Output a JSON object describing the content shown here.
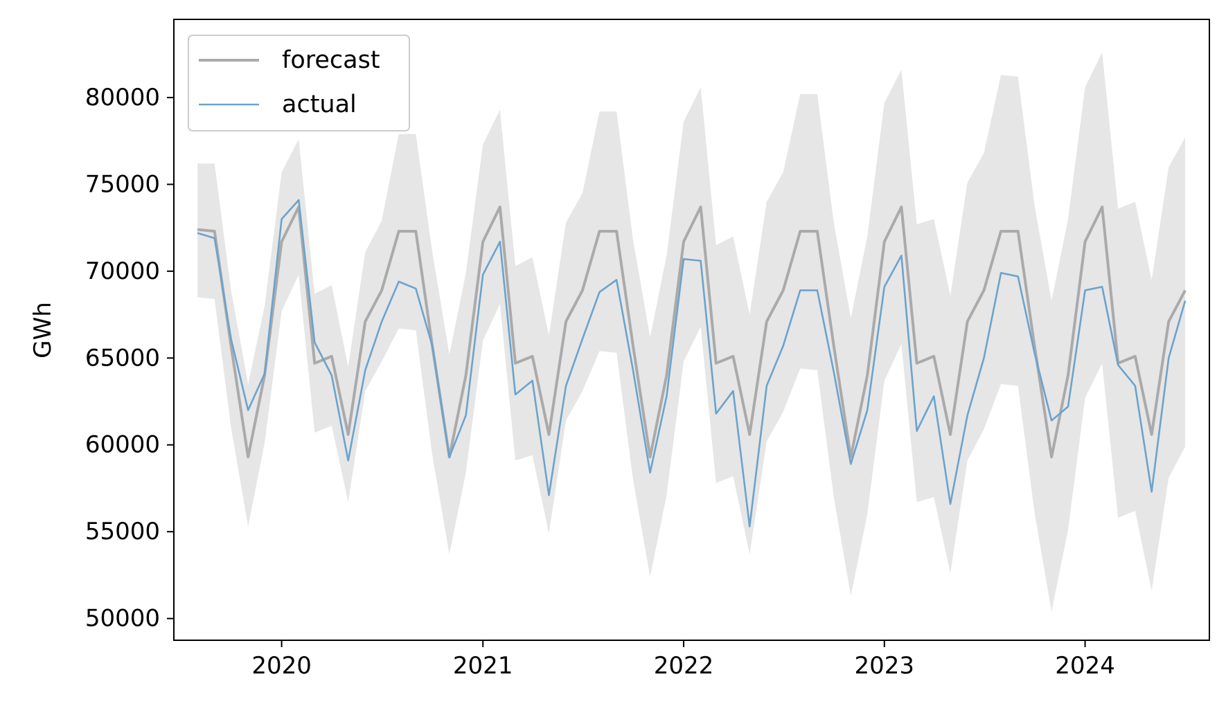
{
  "chart_data": {
    "type": "line",
    "title": "",
    "xlabel": "",
    "ylabel": "GWh",
    "xlim": [
      "2019-06-19",
      "2024-08-14"
    ],
    "ylim": [
      48750,
      84500
    ],
    "x_ticks": [
      "2020-01-01",
      "2021-01-01",
      "2022-01-01",
      "2023-01-01",
      "2024-01-01"
    ],
    "x_tick_labels": [
      "2020",
      "2021",
      "2022",
      "2023",
      "2024"
    ],
    "y_ticks": [
      50000,
      55000,
      60000,
      65000,
      70000,
      75000,
      80000
    ],
    "y_tick_labels": [
      "50000",
      "55000",
      "60000",
      "65000",
      "70000",
      "75000",
      "80000"
    ],
    "legend": {
      "position": "top-left",
      "entries": [
        "forecast",
        "actual"
      ]
    },
    "grid": false,
    "colors": {
      "forecast": "#aaaaaa",
      "actual": "#6ba3cc",
      "band": "#e6e6e6"
    },
    "x": [
      "2019-08-01",
      "2019-09-01",
      "2019-10-01",
      "2019-11-01",
      "2019-12-01",
      "2020-01-01",
      "2020-02-01",
      "2020-03-01",
      "2020-04-01",
      "2020-05-01",
      "2020-06-01",
      "2020-07-01",
      "2020-08-01",
      "2020-09-01",
      "2020-10-01",
      "2020-11-01",
      "2020-12-01",
      "2021-01-01",
      "2021-02-01",
      "2021-03-01",
      "2021-04-01",
      "2021-05-01",
      "2021-06-01",
      "2021-07-01",
      "2021-08-01",
      "2021-09-01",
      "2021-10-01",
      "2021-11-01",
      "2021-12-01",
      "2022-01-01",
      "2022-02-01",
      "2022-03-01",
      "2022-04-01",
      "2022-05-01",
      "2022-06-01",
      "2022-07-01",
      "2022-08-01",
      "2022-09-01",
      "2022-10-01",
      "2022-11-01",
      "2022-12-01",
      "2023-01-01",
      "2023-02-01",
      "2023-03-01",
      "2023-04-01",
      "2023-05-01",
      "2023-06-01",
      "2023-07-01",
      "2023-08-01",
      "2023-09-01",
      "2023-10-01",
      "2023-11-01",
      "2023-12-01",
      "2024-01-01",
      "2024-02-01",
      "2024-03-01",
      "2024-04-01",
      "2024-05-01",
      "2024-06-01",
      "2024-07-01"
    ],
    "series": [
      {
        "name": "forecast",
        "values": [
          72400,
          72300,
          65700,
          59300,
          64000,
          71700,
          73700,
          64700,
          65100,
          60600,
          67100,
          68900,
          72300,
          72300,
          65700,
          59300,
          64000,
          71700,
          73700,
          64700,
          65100,
          60600,
          67100,
          68900,
          72300,
          72300,
          65700,
          59300,
          64000,
          71700,
          73700,
          64700,
          65100,
          60600,
          67100,
          68900,
          72300,
          72300,
          65700,
          59300,
          64000,
          71700,
          73700,
          64700,
          65100,
          60600,
          67100,
          68900,
          72300,
          72300,
          65700,
          59300,
          64000,
          71700,
          73700,
          64700,
          65100,
          60600,
          67100,
          68900
        ]
      },
      {
        "name": "actual",
        "values": [
          72200,
          71900,
          66100,
          62000,
          64100,
          73000,
          74100,
          65900,
          64000,
          59100,
          64300,
          67100,
          69400,
          69000,
          65700,
          59300,
          61700,
          69800,
          71700,
          62900,
          63700,
          57100,
          63400,
          66100,
          68800,
          69500,
          64300,
          58400,
          62800,
          70700,
          70600,
          61800,
          63100,
          55300,
          63400,
          65700,
          68900,
          68900,
          64200,
          58900,
          62000,
          69100,
          70900,
          60800,
          62800,
          56600,
          61700,
          65000,
          69900,
          69700,
          65300,
          61400,
          62200,
          68900,
          69100,
          64600,
          63400,
          57300,
          65000,
          68300
        ]
      },
      {
        "name": "",
        "kind": "band",
        "upper": [
          76200,
          76200,
          68900,
          63500,
          68000,
          75700,
          77600,
          68700,
          69200,
          64500,
          71100,
          72900,
          77900,
          77900,
          71100,
          65200,
          69900,
          77300,
          79300,
          70300,
          70800,
          66300,
          72800,
          74500,
          79200,
          79200,
          71800,
          66200,
          70900,
          78600,
          80600,
          71500,
          72000,
          67500,
          74000,
          75700,
          80200,
          80200,
          72800,
          67300,
          72000,
          79700,
          81600,
          72700,
          73000,
          68600,
          75100,
          76800,
          81300,
          81200,
          73800,
          68300,
          73000,
          80600,
          82600,
          73600,
          74000,
          69500,
          76000,
          77700
        ],
        "lower": [
          68500,
          68400,
          61000,
          55300,
          60100,
          67700,
          69800,
          60700,
          61100,
          56700,
          63100,
          64800,
          66700,
          66600,
          59400,
          53700,
          58400,
          66000,
          68100,
          59100,
          59400,
          54900,
          61400,
          63100,
          65400,
          65300,
          58000,
          52400,
          57100,
          64800,
          66800,
          57800,
          58200,
          53700,
          60200,
          61900,
          64400,
          64300,
          57000,
          51300,
          56000,
          63700,
          65800,
          56700,
          57000,
          52600,
          59100,
          60900,
          63500,
          63400,
          56100,
          50400,
          55100,
          62700,
          64700,
          55800,
          56200,
          51600,
          58100,
          59900
        ]
      }
    ]
  }
}
